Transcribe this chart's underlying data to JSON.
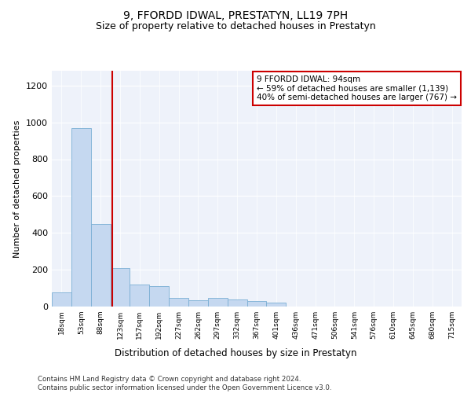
{
  "title": "9, FFORDD IDWAL, PRESTATYN, LL19 7PH",
  "subtitle": "Size of property relative to detached houses in Prestatyn",
  "xlabel": "Distribution of detached houses by size in Prestatyn",
  "ylabel": "Number of detached properties",
  "categories": [
    "18sqm",
    "53sqm",
    "88sqm",
    "123sqm",
    "157sqm",
    "192sqm",
    "227sqm",
    "262sqm",
    "297sqm",
    "332sqm",
    "367sqm",
    "401sqm",
    "436sqm",
    "471sqm",
    "506sqm",
    "541sqm",
    "576sqm",
    "610sqm",
    "645sqm",
    "680sqm",
    "715sqm"
  ],
  "values": [
    75,
    970,
    450,
    210,
    120,
    110,
    45,
    35,
    45,
    40,
    30,
    20,
    0,
    0,
    0,
    0,
    0,
    0,
    0,
    0,
    0
  ],
  "bar_color": "#c5d8f0",
  "bar_edge_color": "#7aafd4",
  "vline_x_index": 2.59,
  "vline_color": "#cc0000",
  "annotation_text": "9 FFORDD IDWAL: 94sqm\n← 59% of detached houses are smaller (1,139)\n40% of semi-detached houses are larger (767) →",
  "annotation_box_color": "#cc0000",
  "annotation_fontsize": 7.5,
  "ylim": [
    0,
    1280
  ],
  "yticks": [
    0,
    200,
    400,
    600,
    800,
    1000,
    1200
  ],
  "background_color": "#eef2fa",
  "footer_text": "Contains HM Land Registry data © Crown copyright and database right 2024.\nContains public sector information licensed under the Open Government Licence v3.0.",
  "title_fontsize": 10,
  "subtitle_fontsize": 9
}
